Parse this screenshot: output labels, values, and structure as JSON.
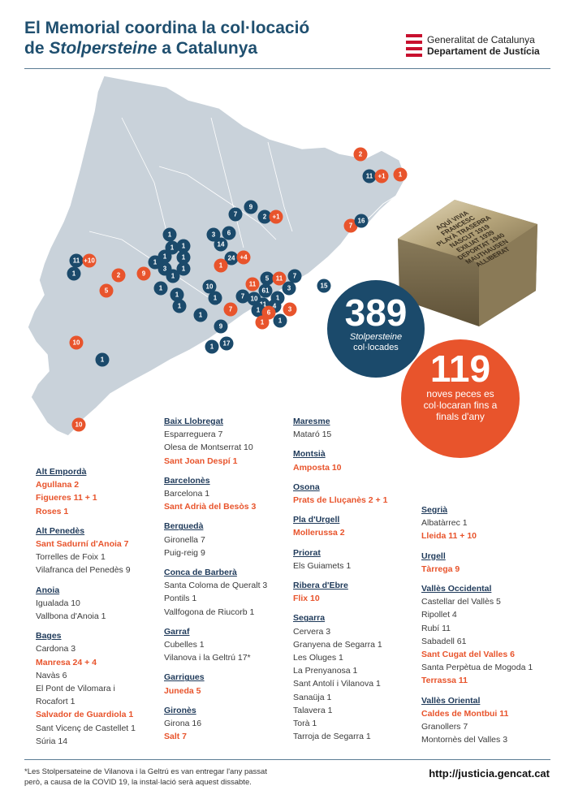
{
  "header": {
    "title_line1": "El Memorial coordina la col·locació",
    "title_line2_pre": "de ",
    "title_line2_italic": "Stolpersteine",
    "title_line2_post": " a Catalunya",
    "logo_line1": "Generalitat de Catalunya",
    "logo_line2": "Departament de Justícia"
  },
  "colors": {
    "blue": "#1b4a6b",
    "orange": "#e8542c",
    "map": "#c9d2da"
  },
  "map_pins": [
    {
      "label": "2",
      "color": "orange"
    },
    {
      "label": "11",
      "color": "blue"
    },
    {
      "label": "+1",
      "color": "orange"
    },
    {
      "label": "1",
      "color": "orange"
    },
    {
      "label": "7",
      "color": "blue"
    },
    {
      "label": "9",
      "color": "blue"
    },
    {
      "label": "2",
      "color": "blue"
    },
    {
      "label": "+1",
      "color": "orange"
    },
    {
      "label": "7",
      "color": "orange"
    },
    {
      "label": "16",
      "color": "blue"
    },
    {
      "label": "1",
      "color": "blue"
    },
    {
      "label": "3",
      "color": "blue"
    },
    {
      "label": "6",
      "color": "blue"
    },
    {
      "label": "14",
      "color": "blue"
    },
    {
      "label": "1",
      "color": "blue"
    },
    {
      "label": "1",
      "color": "blue"
    },
    {
      "label": "1",
      "color": "blue"
    },
    {
      "label": "1",
      "color": "blue"
    },
    {
      "label": "3",
      "color": "blue"
    },
    {
      "label": "1",
      "color": "blue"
    },
    {
      "label": "1",
      "color": "blue"
    },
    {
      "label": "1",
      "color": "blue"
    },
    {
      "label": "11",
      "color": "blue"
    },
    {
      "label": "+10",
      "color": "orange"
    },
    {
      "label": "1",
      "color": "blue"
    },
    {
      "label": "2",
      "color": "orange"
    },
    {
      "label": "9",
      "color": "orange"
    },
    {
      "label": "5",
      "color": "orange"
    },
    {
      "label": "1",
      "color": "blue"
    },
    {
      "label": "1",
      "color": "blue"
    },
    {
      "label": "1",
      "color": "blue"
    },
    {
      "label": "24",
      "color": "blue"
    },
    {
      "label": "+4",
      "color": "orange"
    },
    {
      "label": "1",
      "color": "orange"
    },
    {
      "label": "10",
      "color": "blue"
    },
    {
      "label": "1",
      "color": "blue"
    },
    {
      "label": "7",
      "color": "blue"
    },
    {
      "label": "10",
      "color": "blue"
    },
    {
      "label": "11",
      "color": "orange"
    },
    {
      "label": "5",
      "color": "blue"
    },
    {
      "label": "11",
      "color": "orange"
    },
    {
      "label": "7",
      "color": "blue"
    },
    {
      "label": "61",
      "color": "blue"
    },
    {
      "label": "3",
      "color": "blue"
    },
    {
      "label": "1",
      "color": "blue"
    },
    {
      "label": "11",
      "color": "blue"
    },
    {
      "label": "4",
      "color": "blue"
    },
    {
      "label": "1",
      "color": "blue"
    },
    {
      "label": "6",
      "color": "orange"
    },
    {
      "label": "3",
      "color": "orange"
    },
    {
      "label": "1",
      "color": "blue"
    },
    {
      "label": "1",
      "color": "orange"
    },
    {
      "label": "15",
      "color": "blue"
    },
    {
      "label": "7",
      "color": "orange"
    },
    {
      "label": "1",
      "color": "blue"
    },
    {
      "label": "9",
      "color": "blue"
    },
    {
      "label": "1",
      "color": "blue"
    },
    {
      "label": "17",
      "color": "blue"
    },
    {
      "label": "10",
      "color": "orange"
    },
    {
      "label": "1",
      "color": "blue"
    },
    {
      "label": "10",
      "color": "orange"
    }
  ],
  "stone": {
    "inscription": [
      "AQUÍ VIVIA",
      "FRANCESC",
      "PLAYÀ TRASERRA",
      "NASCUT 1919",
      "EXILIAT 1939",
      "DEPORTAT 1940",
      "MAUTHAUSEN",
      "ALLIBERAT"
    ]
  },
  "stats": {
    "placed_number": "389",
    "placed_label_1": "Stolpersteine",
    "placed_label_2": "col·locades",
    "new_number": "119",
    "new_label_1": "noves peces es",
    "new_label_2": "col·locaran fins a",
    "new_label_3": "finals d'any"
  },
  "columns": [
    [
      {
        "region": "Alt Empordà",
        "towns": [
          {
            "text": "Agullana  2",
            "hl": true
          },
          {
            "text": "Figueres  11 + 1",
            "hl": true,
            "mixed": true,
            "base": "Figueres  11 ",
            "extra": "+ 1"
          },
          {
            "text": "Roses  1",
            "hl": true
          }
        ]
      },
      {
        "region": "Alt Penedès",
        "towns": [
          {
            "text": "Sant Sadurní d'Anoia  7",
            "hl": true
          },
          {
            "text": "Torrelles de Foix  1"
          },
          {
            "text": "Vilafranca del Penedès  9"
          }
        ]
      },
      {
        "region": "Anoia",
        "towns": [
          {
            "text": "Igualada  10"
          },
          {
            "text": "Vallbona d'Anoia  1"
          }
        ]
      },
      {
        "region": "Bages",
        "towns": [
          {
            "text": "Cardona  3"
          },
          {
            "text": "Manresa  24 + 4",
            "hl": true
          },
          {
            "text": "Navàs  6"
          },
          {
            "text": "El Pont de Vilomara i"
          },
          {
            "text": "Rocafort  1"
          },
          {
            "text": "Salvador de Guardiola  1",
            "hl": true
          },
          {
            "text": "Sant Vicenç de Castellet  1"
          },
          {
            "text": "Súria  14"
          }
        ]
      }
    ],
    [
      {
        "region": "Baix Llobregat",
        "towns": [
          {
            "text": "Esparreguera  7"
          },
          {
            "text": "Olesa de Montserrat  10"
          },
          {
            "text": "Sant Joan Despí  1",
            "hl": true
          }
        ]
      },
      {
        "region": "Barcelonès",
        "towns": [
          {
            "text": "Barcelona  1"
          },
          {
            "text": "Sant Adrià del Besòs  3",
            "hl": true
          }
        ]
      },
      {
        "region": "Berguedà",
        "towns": [
          {
            "text": "Gironella  7"
          },
          {
            "text": "Puig-reig  9"
          }
        ]
      },
      {
        "region": "Conca de Barberà",
        "towns": [
          {
            "text": "Santa Coloma de Queralt  3"
          },
          {
            "text": "Pontils  1"
          },
          {
            "text": "Vallfogona de Riucorb  1"
          }
        ]
      },
      {
        "region": "Garraf",
        "towns": [
          {
            "text": "Cubelles  1"
          },
          {
            "text": "Vilanova i la Geltrú  17*"
          }
        ]
      },
      {
        "region": "Garrigues",
        "towns": [
          {
            "text": "Juneda  5",
            "hl": true
          }
        ]
      },
      {
        "region": "Gironès",
        "towns": [
          {
            "text": "Girona  16"
          },
          {
            "text": "Salt  7",
            "hl": true
          }
        ]
      }
    ],
    [
      {
        "region": "Maresme",
        "towns": [
          {
            "text": "Mataró  15"
          }
        ]
      },
      {
        "region": "Montsià",
        "towns": [
          {
            "text": "Amposta  10",
            "hl": true
          }
        ]
      },
      {
        "region": "Osona",
        "towns": [
          {
            "text": "Prats de Lluçanès  2 + 1",
            "hl": true
          }
        ]
      },
      {
        "region": "Pla d'Urgell",
        "towns": [
          {
            "text": "Mollerussa  2",
            "hl": true
          }
        ]
      },
      {
        "region": "Priorat",
        "towns": [
          {
            "text": "Els Guiamets  1"
          }
        ]
      },
      {
        "region": "Ribera d'Ebre",
        "towns": [
          {
            "text": "Flix  10",
            "hl": true
          }
        ]
      },
      {
        "region": "Segarra",
        "towns": [
          {
            "text": "Cervera  3"
          },
          {
            "text": "Granyena de Segarra  1"
          },
          {
            "text": "Les Oluges  1"
          },
          {
            "text": "La Prenyanosa  1"
          },
          {
            "text": "Sant Antolí i Vilanova  1"
          },
          {
            "text": "Sanaüja  1"
          },
          {
            "text": "Talavera  1"
          },
          {
            "text": "Torà  1"
          },
          {
            "text": "Tarroja de Segarra  1"
          }
        ]
      }
    ],
    [
      {
        "region": "Segrià",
        "towns": [
          {
            "text": "Albatàrrec  1"
          },
          {
            "text": "Lleida  11 + 10",
            "hl": true
          }
        ]
      },
      {
        "region": "Urgell",
        "towns": [
          {
            "text": "Tàrrega  9",
            "hl": true
          }
        ]
      },
      {
        "region": "Vallès Occidental",
        "towns": [
          {
            "text": "Castellar del Vallès  5"
          },
          {
            "text": "Ripollet  4"
          },
          {
            "text": "Rubí  11"
          },
          {
            "text": "Sabadell  61"
          },
          {
            "text": "Sant Cugat del Valles  6",
            "hl": true
          },
          {
            "text": "Santa Perpètua de Mogoda  1"
          },
          {
            "text": "Terrassa  11",
            "hl": true
          }
        ]
      },
      {
        "region": "Vallès Oriental",
        "towns": [
          {
            "text": "Caldes de Montbui  11",
            "hl": true
          },
          {
            "text": "Granollers  7"
          },
          {
            "text": "Montornès del Valles  3"
          }
        ]
      }
    ]
  ],
  "footer": {
    "note_line1": "*Les Stolpersateine de Vilanova i la Geltrú es van entregar l'any passat",
    "note_line2": "però, a causa de la COVID 19, la instal·lació serà aquest dissabte.",
    "url": "http://justicia.gencat.cat"
  }
}
